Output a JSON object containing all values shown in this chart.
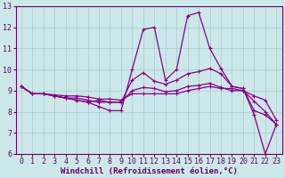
{
  "xlabel": "Windchill (Refroidissement éolien,°C)",
  "background_color": "#cce8e8",
  "line_color": "#880088",
  "grid_color": "#aacccc",
  "x_hours": [
    0,
    1,
    2,
    3,
    4,
    5,
    6,
    7,
    8,
    9,
    10,
    11,
    12,
    13,
    14,
    15,
    16,
    17,
    18,
    19,
    20,
    21,
    22,
    23
  ],
  "series": [
    [
      9.2,
      8.85,
      8.85,
      8.75,
      8.65,
      8.55,
      8.45,
      8.25,
      8.05,
      8.05,
      10.0,
      11.9,
      12.0,
      9.5,
      10.0,
      12.55,
      12.7,
      11.0,
      10.05,
      9.2,
      9.1,
      7.85,
      6.0,
      7.4
    ],
    [
      9.2,
      8.85,
      8.85,
      8.75,
      8.65,
      8.55,
      8.45,
      8.55,
      8.45,
      8.45,
      9.5,
      9.85,
      9.45,
      9.3,
      9.5,
      9.8,
      9.9,
      10.05,
      9.8,
      9.2,
      9.1,
      8.05,
      7.85,
      7.4
    ],
    [
      9.2,
      8.85,
      8.85,
      8.75,
      8.65,
      8.65,
      8.55,
      8.45,
      8.45,
      8.45,
      9.0,
      9.15,
      9.1,
      8.95,
      9.0,
      9.2,
      9.25,
      9.35,
      9.15,
      9.0,
      9.0,
      8.5,
      8.0,
      7.4
    ],
    [
      9.2,
      8.85,
      8.85,
      8.8,
      8.75,
      8.75,
      8.7,
      8.6,
      8.6,
      8.55,
      8.85,
      8.85,
      8.85,
      8.85,
      8.85,
      9.0,
      9.1,
      9.2,
      9.1,
      9.1,
      9.0,
      8.75,
      8.55,
      7.6
    ]
  ],
  "ylim": [
    6,
    13
  ],
  "xlim": [
    -0.5,
    23.5
  ],
  "yticks": [
    6,
    7,
    8,
    9,
    10,
    11,
    12,
    13
  ],
  "xticks": [
    0,
    1,
    2,
    3,
    4,
    5,
    6,
    7,
    8,
    9,
    10,
    11,
    12,
    13,
    14,
    15,
    16,
    17,
    18,
    19,
    20,
    21,
    22,
    23
  ],
  "xlabel_fontsize": 6.5,
  "tick_fontsize": 6.0,
  "linewidth": 0.9,
  "markersize": 2.5
}
